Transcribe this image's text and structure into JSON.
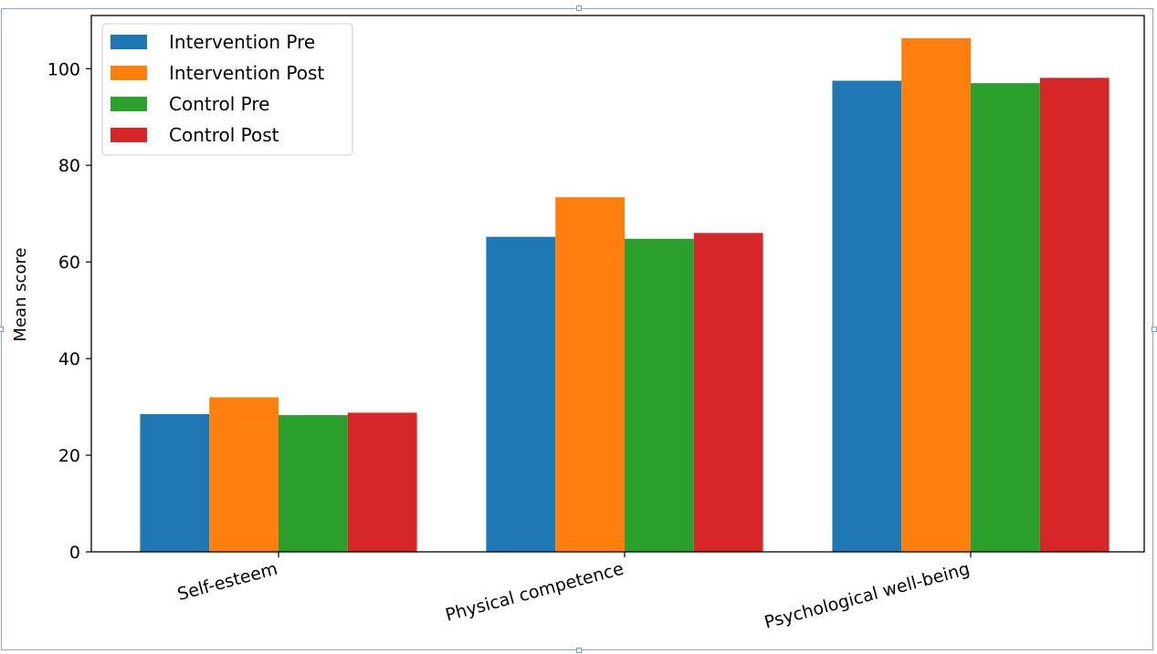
{
  "chart_data": {
    "type": "bar",
    "title": "",
    "xlabel": "",
    "ylabel": "Mean score",
    "ylim": [
      0,
      111
    ],
    "yticks": [
      0,
      20,
      40,
      60,
      80,
      100
    ],
    "categories": [
      "Self-esteem",
      "Physical competence",
      "Psychological well-being"
    ],
    "series": [
      {
        "name": "Intervention Pre",
        "color": "#1f77b4",
        "values": [
          28.5,
          65.2,
          97.5
        ]
      },
      {
        "name": "Intervention Post",
        "color": "#ff7f0e",
        "values": [
          32.0,
          73.4,
          106.3
        ]
      },
      {
        "name": "Control Pre",
        "color": "#2ca02c",
        "values": [
          28.3,
          64.8,
          97.0
        ]
      },
      {
        "name": "Control Post",
        "color": "#d62728",
        "values": [
          28.8,
          66.0,
          98.1
        ]
      }
    ],
    "legend": "top-left",
    "grid": false
  }
}
